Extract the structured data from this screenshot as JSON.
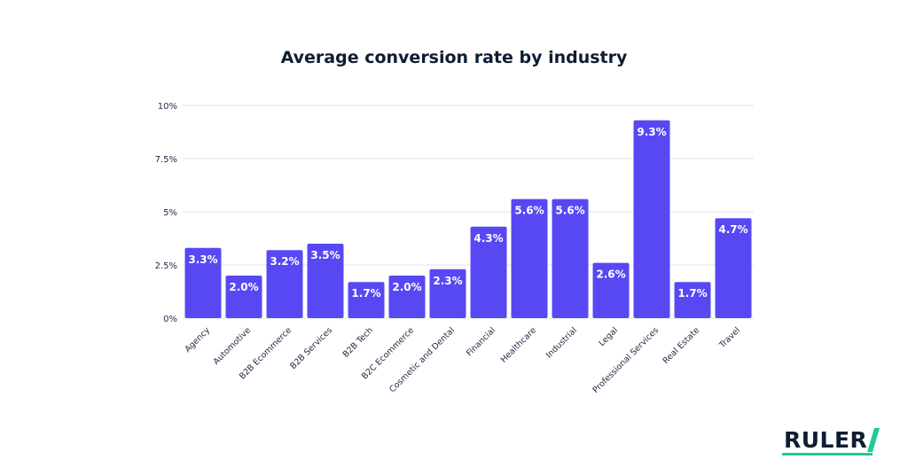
{
  "chart_data": {
    "type": "bar",
    "title": "Average conversion rate by industry",
    "xlabel": "",
    "ylabel": "",
    "ylim": [
      0,
      10
    ],
    "yticks": [
      {
        "value": 0,
        "label": "0%"
      },
      {
        "value": 2.5,
        "label": "2.5%"
      },
      {
        "value": 5,
        "label": "5%"
      },
      {
        "value": 7.5,
        "label": "7.5%"
      },
      {
        "value": 10,
        "label": "10%"
      }
    ],
    "grid": true,
    "bar_color": "#5848f4",
    "categories": [
      "Agency",
      "Automotive",
      "B2B Ecommerce",
      "B2B Services",
      "B2B Tech",
      "B2C Ecommerce",
      "Cosmetic and Dental",
      "Financial",
      "Healthcare",
      "Industrial",
      "Legal",
      "Professional Services",
      "Real Estate",
      "Travel"
    ],
    "values": [
      3.3,
      2.0,
      3.2,
      3.5,
      1.7,
      2.0,
      2.3,
      4.3,
      5.6,
      5.6,
      2.6,
      9.3,
      1.7,
      4.7
    ],
    "value_labels": [
      "3.3%",
      "2.0%",
      "3.2%",
      "3.5%",
      "1.7%",
      "2.0%",
      "2.3%",
      "4.3%",
      "5.6%",
      "5.6%",
      "2.6%",
      "9.3%",
      "1.7%",
      "4.7%"
    ]
  },
  "logo": {
    "text": "RULER",
    "text_color": "#0f1d33",
    "accent_color": "#1ec99a"
  }
}
